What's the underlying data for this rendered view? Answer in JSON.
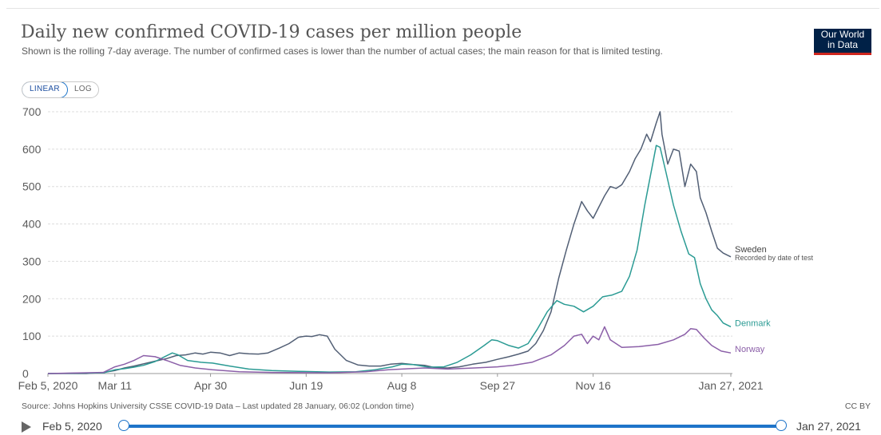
{
  "header": {
    "title": "Daily new confirmed COVID-19 cases per million people",
    "subtitle": "Shown is the rolling 7-day average. The number of confirmed cases is lower than the number of actual cases; the main reason for that is limited testing.",
    "logo_line1": "Our World",
    "logo_line2": "in Data"
  },
  "controls": {
    "linear_label": "LINEAR",
    "log_label": "LOG",
    "active_scale": "linear"
  },
  "footer": {
    "source": "Source: Johns Hopkins University CSSE COVID-19 Data – Last updated 28 January, 06:02 (London time)",
    "license": "CC BY"
  },
  "timeline": {
    "start_label": "Feb 5, 2020",
    "end_label": "Jan 27, 2021"
  },
  "colors": {
    "Sweden": "#525f75",
    "Denmark": "#2b9b94",
    "Norway": "#8b5fa8",
    "grid": "#dddddd",
    "axis_text": "#5b5b5b"
  },
  "chart_data": {
    "type": "line",
    "title": "Daily new confirmed COVID-19 cases per million people",
    "xlabel": "",
    "ylabel": "",
    "ylim": [
      0,
      700
    ],
    "yticks": [
      0,
      100,
      200,
      300,
      400,
      500,
      600,
      700
    ],
    "xlim": [
      "2020-02-05",
      "2021-01-27"
    ],
    "xtick_labels": [
      "Feb 5, 2020",
      "Mar 11",
      "Apr 30",
      "Jun 19",
      "Aug 8",
      "Sep 27",
      "Nov 16",
      "Jan 27, 2021"
    ],
    "xtick_dates": [
      "2020-02-05",
      "2020-03-11",
      "2020-04-30",
      "2020-06-19",
      "2020-08-08",
      "2020-09-27",
      "2020-11-16",
      "2021-01-27"
    ],
    "grid": true,
    "legend": "direct labels at right end of lines",
    "series": [
      {
        "name": "Sweden",
        "note": "Recorded by date of test",
        "points": [
          [
            "2020-02-05",
            0
          ],
          [
            "2020-02-25",
            0
          ],
          [
            "2020-03-05",
            3
          ],
          [
            "2020-03-11",
            8
          ],
          [
            "2020-03-16",
            15
          ],
          [
            "2020-03-21",
            20
          ],
          [
            "2020-03-26",
            26
          ],
          [
            "2020-04-01",
            33
          ],
          [
            "2020-04-07",
            40
          ],
          [
            "2020-04-12",
            48
          ],
          [
            "2020-04-17",
            50
          ],
          [
            "2020-04-22",
            55
          ],
          [
            "2020-04-26",
            52
          ],
          [
            "2020-04-30",
            57
          ],
          [
            "2020-05-05",
            55
          ],
          [
            "2020-05-10",
            48
          ],
          [
            "2020-05-15",
            55
          ],
          [
            "2020-05-20",
            53
          ],
          [
            "2020-05-25",
            52
          ],
          [
            "2020-05-30",
            55
          ],
          [
            "2020-06-05",
            68
          ],
          [
            "2020-06-10",
            80
          ],
          [
            "2020-06-15",
            97
          ],
          [
            "2020-06-19",
            100
          ],
          [
            "2020-06-22",
            99
          ],
          [
            "2020-06-26",
            104
          ],
          [
            "2020-06-30",
            100
          ],
          [
            "2020-07-04",
            65
          ],
          [
            "2020-07-10",
            35
          ],
          [
            "2020-07-16",
            23
          ],
          [
            "2020-07-22",
            20
          ],
          [
            "2020-07-28",
            20
          ],
          [
            "2020-08-02",
            25
          ],
          [
            "2020-08-08",
            27
          ],
          [
            "2020-08-14",
            24
          ],
          [
            "2020-08-20",
            22
          ],
          [
            "2020-08-26",
            15
          ],
          [
            "2020-09-01",
            15
          ],
          [
            "2020-09-07",
            18
          ],
          [
            "2020-09-14",
            25
          ],
          [
            "2020-09-21",
            30
          ],
          [
            "2020-09-27",
            38
          ],
          [
            "2020-10-03",
            45
          ],
          [
            "2020-10-08",
            52
          ],
          [
            "2020-10-13",
            60
          ],
          [
            "2020-10-17",
            80
          ],
          [
            "2020-10-21",
            115
          ],
          [
            "2020-10-25",
            165
          ],
          [
            "2020-10-29",
            255
          ],
          [
            "2020-11-02",
            330
          ],
          [
            "2020-11-06",
            400
          ],
          [
            "2020-11-10",
            460
          ],
          [
            "2020-11-13",
            435
          ],
          [
            "2020-11-16",
            415
          ],
          [
            "2020-11-19",
            445
          ],
          [
            "2020-11-22",
            475
          ],
          [
            "2020-11-25",
            500
          ],
          [
            "2020-11-28",
            495
          ],
          [
            "2020-12-01",
            505
          ],
          [
            "2020-12-05",
            540
          ],
          [
            "2020-12-08",
            575
          ],
          [
            "2020-12-11",
            600
          ],
          [
            "2020-12-14",
            640
          ],
          [
            "2020-12-16",
            620
          ],
          [
            "2020-12-19",
            670
          ],
          [
            "2020-12-21",
            700
          ],
          [
            "2020-12-22",
            640
          ],
          [
            "2020-12-25",
            560
          ],
          [
            "2020-12-28",
            600
          ],
          [
            "2020-12-31",
            595
          ],
          [
            "2021-01-03",
            500
          ],
          [
            "2021-01-06",
            560
          ],
          [
            "2021-01-09",
            540
          ],
          [
            "2021-01-11",
            470
          ],
          [
            "2021-01-14",
            430
          ],
          [
            "2021-01-17",
            380
          ],
          [
            "2021-01-20",
            335
          ],
          [
            "2021-01-23",
            322
          ],
          [
            "2021-01-27",
            312
          ]
        ]
      },
      {
        "name": "Denmark",
        "points": [
          [
            "2020-02-05",
            0
          ],
          [
            "2020-03-05",
            2
          ],
          [
            "2020-03-11",
            10
          ],
          [
            "2020-03-16",
            13
          ],
          [
            "2020-03-21",
            17
          ],
          [
            "2020-03-26",
            22
          ],
          [
            "2020-04-01",
            32
          ],
          [
            "2020-04-06",
            45
          ],
          [
            "2020-04-10",
            55
          ],
          [
            "2020-04-13",
            50
          ],
          [
            "2020-04-18",
            35
          ],
          [
            "2020-04-25",
            30
          ],
          [
            "2020-05-01",
            28
          ],
          [
            "2020-05-10",
            20
          ],
          [
            "2020-05-20",
            12
          ],
          [
            "2020-06-01",
            8
          ],
          [
            "2020-06-15",
            6
          ],
          [
            "2020-07-01",
            4
          ],
          [
            "2020-07-15",
            5
          ],
          [
            "2020-07-25",
            10
          ],
          [
            "2020-08-03",
            18
          ],
          [
            "2020-08-08",
            25
          ],
          [
            "2020-08-14",
            24
          ],
          [
            "2020-08-22",
            17
          ],
          [
            "2020-08-30",
            18
          ],
          [
            "2020-09-06",
            30
          ],
          [
            "2020-09-13",
            50
          ],
          [
            "2020-09-20",
            75
          ],
          [
            "2020-09-24",
            90
          ],
          [
            "2020-09-27",
            88
          ],
          [
            "2020-10-03",
            75
          ],
          [
            "2020-10-08",
            68
          ],
          [
            "2020-10-13",
            80
          ],
          [
            "2020-10-18",
            120
          ],
          [
            "2020-10-23",
            165
          ],
          [
            "2020-10-28",
            195
          ],
          [
            "2020-11-01",
            185
          ],
          [
            "2020-11-06",
            180
          ],
          [
            "2020-11-11",
            165
          ],
          [
            "2020-11-16",
            180
          ],
          [
            "2020-11-21",
            205
          ],
          [
            "2020-11-26",
            210
          ],
          [
            "2020-12-01",
            220
          ],
          [
            "2020-12-05",
            260
          ],
          [
            "2020-12-09",
            330
          ],
          [
            "2020-12-13",
            450
          ],
          [
            "2020-12-16",
            530
          ],
          [
            "2020-12-19",
            610
          ],
          [
            "2020-12-21",
            605
          ],
          [
            "2020-12-24",
            540
          ],
          [
            "2020-12-28",
            450
          ],
          [
            "2021-01-01",
            380
          ],
          [
            "2021-01-05",
            320
          ],
          [
            "2021-01-08",
            310
          ],
          [
            "2021-01-11",
            240
          ],
          [
            "2021-01-14",
            200
          ],
          [
            "2021-01-17",
            170
          ],
          [
            "2021-01-20",
            155
          ],
          [
            "2021-01-23",
            135
          ],
          [
            "2021-01-27",
            125
          ]
        ]
      },
      {
        "name": "Norway",
        "points": [
          [
            "2020-02-05",
            0
          ],
          [
            "2020-03-05",
            3
          ],
          [
            "2020-03-11",
            18
          ],
          [
            "2020-03-16",
            25
          ],
          [
            "2020-03-21",
            35
          ],
          [
            "2020-03-26",
            48
          ],
          [
            "2020-04-01",
            45
          ],
          [
            "2020-04-07",
            35
          ],
          [
            "2020-04-14",
            22
          ],
          [
            "2020-04-22",
            15
          ],
          [
            "2020-05-01",
            10
          ],
          [
            "2020-05-15",
            5
          ],
          [
            "2020-06-01",
            3
          ],
          [
            "2020-07-01",
            2
          ],
          [
            "2020-07-20",
            5
          ],
          [
            "2020-08-01",
            10
          ],
          [
            "2020-08-08",
            12
          ],
          [
            "2020-08-20",
            15
          ],
          [
            "2020-09-01",
            12
          ],
          [
            "2020-09-15",
            15
          ],
          [
            "2020-09-27",
            18
          ],
          [
            "2020-10-05",
            22
          ],
          [
            "2020-10-15",
            30
          ],
          [
            "2020-10-25",
            50
          ],
          [
            "2020-11-01",
            75
          ],
          [
            "2020-11-06",
            100
          ],
          [
            "2020-11-10",
            105
          ],
          [
            "2020-11-13",
            80
          ],
          [
            "2020-11-16",
            100
          ],
          [
            "2020-11-19",
            90
          ],
          [
            "2020-11-22",
            125
          ],
          [
            "2020-11-25",
            90
          ],
          [
            "2020-12-01",
            70
          ],
          [
            "2020-12-10",
            72
          ],
          [
            "2020-12-20",
            78
          ],
          [
            "2020-12-28",
            90
          ],
          [
            "2021-01-03",
            105
          ],
          [
            "2021-01-06",
            120
          ],
          [
            "2021-01-09",
            118
          ],
          [
            "2021-01-13",
            95
          ],
          [
            "2021-01-17",
            75
          ],
          [
            "2021-01-22",
            60
          ],
          [
            "2021-01-27",
            55
          ]
        ]
      }
    ]
  }
}
